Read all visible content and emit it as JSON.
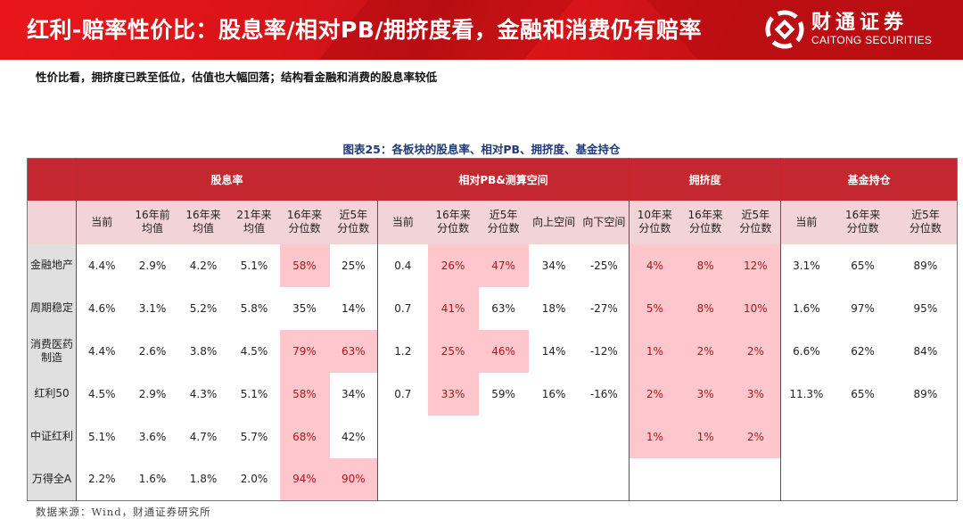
{
  "banner": {
    "title": "红利-赔率性价比：股息率/相对PB/拥挤度看，金融和消费仍有赔率",
    "logo_cn": "财通证券",
    "logo_en": "CAITONG SECURITIES",
    "logo_icon": "caitong-logo-icon",
    "colors": {
      "background": "#d81418",
      "text": "#ffffff"
    }
  },
  "subtitle": "性价比看，拥挤度已跌至低位，估值也大幅回落；结构看金融和消费的股息率较低",
  "figure_title": "图表25：各板块的股息率、相对PB、拥挤度、基金持仓",
  "table": {
    "groups": [
      {
        "label": "股息率",
        "span": 6
      },
      {
        "label": "相对PB&测算空间",
        "span": 5
      },
      {
        "label": "拥挤度",
        "span": 3
      },
      {
        "label": "基金持仓",
        "span": 3
      }
    ],
    "columns": [
      [
        "当前",
        ""
      ],
      [
        "16年前",
        "均值"
      ],
      [
        "16年来",
        "均值"
      ],
      [
        "21年来",
        "均值"
      ],
      [
        "16年来",
        "分位数"
      ],
      [
        "近5年",
        "分位数"
      ],
      [
        "当前",
        ""
      ],
      [
        "16年来",
        "分位数"
      ],
      [
        "近5年",
        "分位数"
      ],
      [
        "向上空间",
        ""
      ],
      [
        "向下空间",
        ""
      ],
      [
        "10年来",
        "分位数"
      ],
      [
        "16年来",
        "分位数"
      ],
      [
        "近5年",
        "分位数"
      ],
      [
        "当前",
        ""
      ],
      [
        "16年来",
        "分位数"
      ],
      [
        "近5年",
        "分位数"
      ]
    ],
    "rows": [
      {
        "label": [
          "金融地产",
          ""
        ],
        "cells": [
          "4.4%",
          "2.9%",
          "4.2%",
          "5.1%",
          "58%",
          "25%",
          "0.4",
          "26%",
          "47%",
          "34%",
          "-25%",
          "4%",
          "8%",
          "12%",
          "3.1%",
          "65%",
          "89%"
        ],
        "highlight": [
          4,
          7,
          8,
          11,
          12,
          13
        ]
      },
      {
        "label": [
          "周期稳定",
          ""
        ],
        "cells": [
          "4.6%",
          "3.1%",
          "5.2%",
          "5.8%",
          "35%",
          "14%",
          "0.7",
          "41%",
          "63%",
          "18%",
          "-27%",
          "5%",
          "8%",
          "10%",
          "1.6%",
          "97%",
          "95%"
        ],
        "highlight": [
          7,
          11,
          12,
          13
        ]
      },
      {
        "label": [
          "消费医药",
          "制造"
        ],
        "cells": [
          "4.4%",
          "2.6%",
          "3.8%",
          "4.5%",
          "79%",
          "63%",
          "1.2",
          "25%",
          "46%",
          "14%",
          "-12%",
          "1%",
          "2%",
          "2%",
          "6.6%",
          "62%",
          "84%"
        ],
        "highlight": [
          4,
          5,
          7,
          8,
          11,
          12,
          13
        ]
      },
      {
        "label": [
          "红利50",
          ""
        ],
        "cells": [
          "4.5%",
          "2.9%",
          "4.3%",
          "5.1%",
          "58%",
          "34%",
          "0.7",
          "33%",
          "59%",
          "16%",
          "-16%",
          "2%",
          "3%",
          "3%",
          "11.3%",
          "65%",
          "89%"
        ],
        "highlight": [
          4,
          7,
          11,
          12,
          13
        ]
      },
      {
        "label": [
          "中证红利",
          ""
        ],
        "cells": [
          "5.1%",
          "3.6%",
          "4.7%",
          "5.7%",
          "68%",
          "42%",
          "",
          "",
          "",
          "",
          "",
          "1%",
          "1%",
          "2%",
          "",
          "",
          ""
        ],
        "highlight": [
          4,
          11,
          12,
          13
        ]
      },
      {
        "label": [
          "万得全A",
          ""
        ],
        "cells": [
          "2.2%",
          "1.6%",
          "1.8%",
          "2.0%",
          "94%",
          "90%",
          "",
          "",
          "",
          "",
          "",
          "",
          "",
          "",
          "",
          "",
          ""
        ],
        "highlight": [
          4,
          5
        ]
      }
    ],
    "colors": {
      "group_header_bg": "#c4282e",
      "sub_header_bg": "#f3d4d6",
      "row_label_bg": "#e0e0e0",
      "highlight_bg": "#ffc7cc",
      "highlight_text": "#b5121b"
    }
  },
  "source": "数据来源：Wind，财通证券研究所"
}
